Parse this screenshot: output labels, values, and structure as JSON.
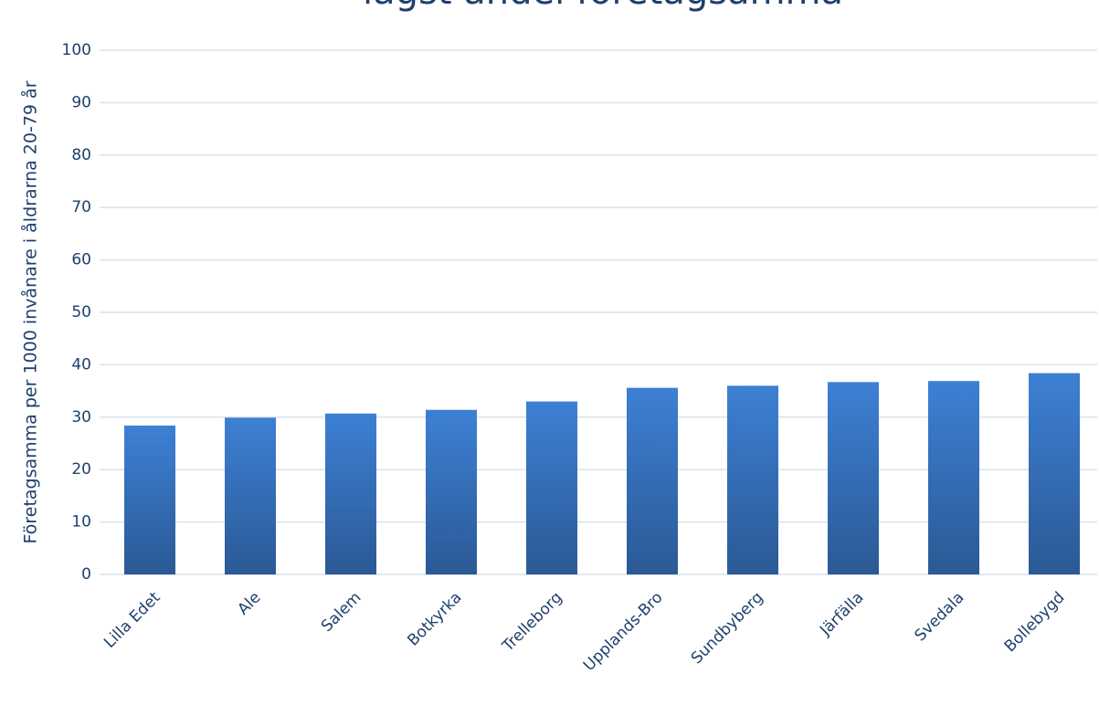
{
  "chart_data": {
    "type": "bar",
    "title": "lägst andel företagsamma",
    "y_label": "Företagsamma per 1000 invånare i åldrarna 20-79 år",
    "categories": [
      "Lilla Edet",
      "Ale",
      "Salem",
      "Botkyrka",
      "Trelleborg",
      "Upplands-Bro",
      "Sundbyberg",
      "Järfälla",
      "Svedala",
      "Bollebygd"
    ],
    "values": [
      28.4,
      29.9,
      30.7,
      31.4,
      33.0,
      35.6,
      36.0,
      36.7,
      36.9,
      38.4
    ],
    "color": "#3478c9",
    "ylim": [
      0,
      100
    ],
    "yticks": [
      0,
      10,
      20,
      30,
      40,
      50,
      60,
      70,
      80,
      90,
      100
    ],
    "grid": true
  }
}
